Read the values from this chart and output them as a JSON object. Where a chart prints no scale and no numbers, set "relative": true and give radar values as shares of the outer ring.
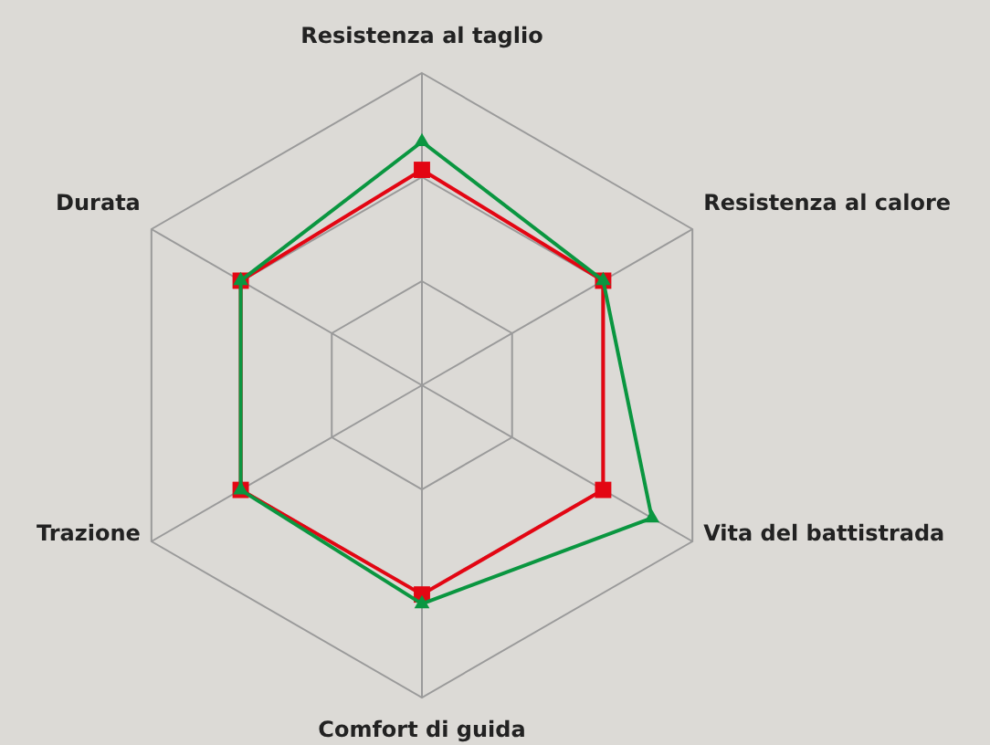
{
  "chart_data": {
    "type": "radar",
    "relative": true,
    "categories": [
      "Resistenza al taglio",
      "Resistenza al calore",
      "Vita del battistrada",
      "Comfort di guida",
      "Trazione",
      "Durata"
    ],
    "grid": true,
    "series": [
      {
        "color": "#e30613",
        "marker": "square",
        "values": [
          0.69,
          0.67,
          0.67,
          0.67,
          0.67,
          0.67
        ]
      },
      {
        "color": "#0a9640",
        "marker": "triangle",
        "values": [
          0.78,
          0.67,
          0.85,
          0.7,
          0.67,
          0.67
        ]
      }
    ]
  }
}
